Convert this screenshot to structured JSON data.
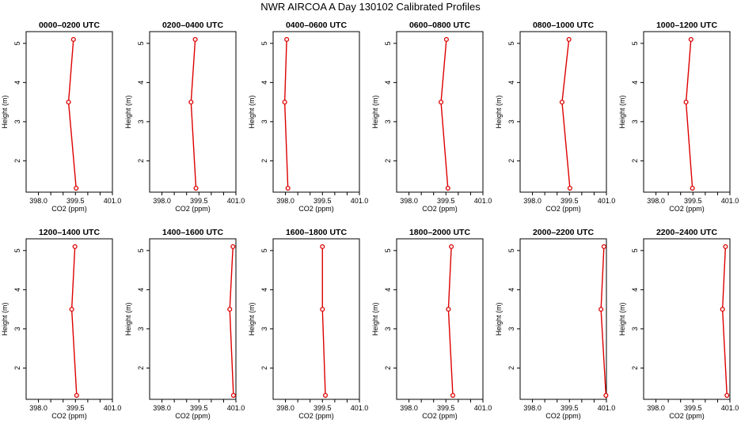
{
  "title": "NWR AIRCOA A  Day 130102  Calibrated Profiles",
  "chart_data": [
    {
      "type": "line",
      "title": "0000–0200 UTC",
      "xlabel": "CO2 (ppm)",
      "ylabel": "Height (m)",
      "xlim": [
        397.5,
        401.0
      ],
      "ylim": [
        1.2,
        5.3
      ],
      "xticks": [
        398.0,
        398.5,
        399.0,
        399.5,
        400.0,
        400.5,
        401.0
      ],
      "xtick_labels": [
        "398.0",
        "",
        "",
        "399.5",
        "",
        "",
        "401.0"
      ],
      "yticks": [
        2,
        3,
        4,
        5
      ],
      "ytick_labels": [
        "2",
        "3",
        "4",
        "5"
      ],
      "series": [
        {
          "color": "#dd0000",
          "points": [
            {
              "x": 399.42,
              "y": 5.1
            },
            {
              "x": 399.22,
              "y": 3.5
            },
            {
              "x": 399.53,
              "y": 1.3
            }
          ]
        }
      ]
    },
    {
      "type": "line",
      "title": "0200–0400 UTC",
      "xlabel": "CO2 (ppm)",
      "ylabel": "Height (m)",
      "xlim": [
        397.5,
        401.0
      ],
      "ylim": [
        1.2,
        5.3
      ],
      "xticks": [
        398.0,
        398.5,
        399.0,
        399.5,
        400.0,
        400.5,
        401.0
      ],
      "xtick_labels": [
        "398.0",
        "",
        "",
        "399.5",
        "",
        "",
        "401.0"
      ],
      "yticks": [
        2,
        3,
        4,
        5
      ],
      "ytick_labels": [
        "2",
        "3",
        "4",
        "5"
      ],
      "series": [
        {
          "color": "#dd0000",
          "points": [
            {
              "x": 399.35,
              "y": 5.1
            },
            {
              "x": 399.18,
              "y": 3.5
            },
            {
              "x": 399.38,
              "y": 1.3
            }
          ]
        }
      ]
    },
    {
      "type": "line",
      "title": "0400–0600 UTC",
      "xlabel": "CO2 (ppm)",
      "ylabel": "Height (m)",
      "xlim": [
        397.5,
        401.0
      ],
      "ylim": [
        1.2,
        5.3
      ],
      "xticks": [
        398.0,
        398.5,
        399.0,
        399.5,
        400.0,
        400.5,
        401.0
      ],
      "xtick_labels": [
        "398.0",
        "",
        "",
        "399.5",
        "",
        "",
        "401.0"
      ],
      "yticks": [
        2,
        3,
        4,
        5
      ],
      "ytick_labels": [
        "2",
        "3",
        "4",
        "5"
      ],
      "series": [
        {
          "color": "#dd0000",
          "points": [
            {
              "x": 398.05,
              "y": 5.1
            },
            {
              "x": 397.97,
              "y": 3.5
            },
            {
              "x": 398.1,
              "y": 1.3
            }
          ]
        }
      ]
    },
    {
      "type": "line",
      "title": "0600–0800 UTC",
      "xlabel": "CO2 (ppm)",
      "ylabel": "Height (m)",
      "xlim": [
        397.5,
        401.0
      ],
      "ylim": [
        1.2,
        5.3
      ],
      "xticks": [
        398.0,
        398.5,
        399.0,
        399.5,
        400.0,
        400.5,
        401.0
      ],
      "xtick_labels": [
        "398.0",
        "",
        "",
        "399.5",
        "",
        "",
        "401.0"
      ],
      "yticks": [
        2,
        3,
        4,
        5
      ],
      "ytick_labels": [
        "2",
        "3",
        "4",
        "5"
      ],
      "series": [
        {
          "color": "#dd0000",
          "points": [
            {
              "x": 399.52,
              "y": 5.1
            },
            {
              "x": 399.3,
              "y": 3.5
            },
            {
              "x": 399.58,
              "y": 1.3
            }
          ]
        }
      ]
    },
    {
      "type": "line",
      "title": "0800–1000 UTC",
      "xlabel": "CO2 (ppm)",
      "ylabel": "Height (m)",
      "xlim": [
        397.5,
        401.0
      ],
      "ylim": [
        1.2,
        5.3
      ],
      "xticks": [
        398.0,
        398.5,
        399.0,
        399.5,
        400.0,
        400.5,
        401.0
      ],
      "xtick_labels": [
        "398.0",
        "",
        "",
        "399.5",
        "",
        "",
        "401.0"
      ],
      "yticks": [
        2,
        3,
        4,
        5
      ],
      "ytick_labels": [
        "2",
        "3",
        "4",
        "5"
      ],
      "series": [
        {
          "color": "#dd0000",
          "points": [
            {
              "x": 399.48,
              "y": 5.1
            },
            {
              "x": 399.2,
              "y": 3.5
            },
            {
              "x": 399.52,
              "y": 1.3
            }
          ]
        }
      ]
    },
    {
      "type": "line",
      "title": "1000–1200 UTC",
      "xlabel": "CO2 (ppm)",
      "ylabel": "Height (m)",
      "xlim": [
        397.5,
        401.0
      ],
      "ylim": [
        1.2,
        5.3
      ],
      "xticks": [
        398.0,
        398.5,
        399.0,
        399.5,
        400.0,
        400.5,
        401.0
      ],
      "xtick_labels": [
        "398.0",
        "",
        "",
        "399.5",
        "",
        "",
        "401.0"
      ],
      "yticks": [
        2,
        3,
        4,
        5
      ],
      "ytick_labels": [
        "2",
        "3",
        "4",
        "5"
      ],
      "series": [
        {
          "color": "#dd0000",
          "points": [
            {
              "x": 399.42,
              "y": 5.1
            },
            {
              "x": 399.22,
              "y": 3.5
            },
            {
              "x": 399.48,
              "y": 1.3
            }
          ]
        }
      ]
    },
    {
      "type": "line",
      "title": "1200–1400 UTC",
      "xlabel": "CO2 (ppm)",
      "ylabel": "Height (m)",
      "xlim": [
        397.5,
        401.0
      ],
      "ylim": [
        1.2,
        5.3
      ],
      "xticks": [
        398.0,
        398.5,
        399.0,
        399.5,
        400.0,
        400.5,
        401.0
      ],
      "xtick_labels": [
        "398.0",
        "",
        "",
        "399.5",
        "",
        "",
        "401.0"
      ],
      "yticks": [
        2,
        3,
        4,
        5
      ],
      "ytick_labels": [
        "2",
        "3",
        "4",
        "5"
      ],
      "series": [
        {
          "color": "#dd0000",
          "points": [
            {
              "x": 399.48,
              "y": 5.1
            },
            {
              "x": 399.35,
              "y": 3.5
            },
            {
              "x": 399.55,
              "y": 1.3
            }
          ]
        }
      ]
    },
    {
      "type": "line",
      "title": "1400–1600 UTC",
      "xlabel": "CO2 (ppm)",
      "ylabel": "Height (m)",
      "xlim": [
        397.5,
        401.0
      ],
      "ylim": [
        1.2,
        5.3
      ],
      "xticks": [
        398.0,
        398.5,
        399.0,
        399.5,
        400.0,
        400.5,
        401.0
      ],
      "xtick_labels": [
        "398.0",
        "",
        "",
        "399.5",
        "",
        "",
        "401.0"
      ],
      "yticks": [
        2,
        3,
        4,
        5
      ],
      "ytick_labels": [
        "2",
        "3",
        "4",
        "5"
      ],
      "series": [
        {
          "color": "#dd0000",
          "points": [
            {
              "x": 400.88,
              "y": 5.1
            },
            {
              "x": 400.75,
              "y": 3.5
            },
            {
              "x": 400.9,
              "y": 1.3
            }
          ]
        }
      ]
    },
    {
      "type": "line",
      "title": "1600–1800 UTC",
      "xlabel": "CO2 (ppm)",
      "ylabel": "Height (m)",
      "xlim": [
        397.5,
        401.0
      ],
      "ylim": [
        1.2,
        5.3
      ],
      "xticks": [
        398.0,
        398.5,
        399.0,
        399.5,
        400.0,
        400.5,
        401.0
      ],
      "xtick_labels": [
        "398.0",
        "",
        "",
        "399.5",
        "",
        "",
        "401.0"
      ],
      "yticks": [
        2,
        3,
        4,
        5
      ],
      "ytick_labels": [
        "2",
        "3",
        "4",
        "5"
      ],
      "series": [
        {
          "color": "#dd0000",
          "points": [
            {
              "x": 399.5,
              "y": 5.1
            },
            {
              "x": 399.5,
              "y": 3.5
            },
            {
              "x": 399.62,
              "y": 1.3
            }
          ]
        }
      ]
    },
    {
      "type": "line",
      "title": "1800–2000 UTC",
      "xlabel": "CO2 (ppm)",
      "ylabel": "Height (m)",
      "xlim": [
        397.5,
        401.0
      ],
      "ylim": [
        1.2,
        5.3
      ],
      "xticks": [
        398.0,
        398.5,
        399.0,
        399.5,
        400.0,
        400.5,
        401.0
      ],
      "xtick_labels": [
        "398.0",
        "",
        "",
        "399.5",
        "",
        "",
        "401.0"
      ],
      "yticks": [
        2,
        3,
        4,
        5
      ],
      "ytick_labels": [
        "2",
        "3",
        "4",
        "5"
      ],
      "series": [
        {
          "color": "#dd0000",
          "points": [
            {
              "x": 399.72,
              "y": 5.1
            },
            {
              "x": 399.6,
              "y": 3.5
            },
            {
              "x": 399.78,
              "y": 1.3
            }
          ]
        }
      ]
    },
    {
      "type": "line",
      "title": "2000–2200 UTC",
      "xlabel": "CO2 (ppm)",
      "ylabel": "Height (m)",
      "xlim": [
        397.5,
        401.0
      ],
      "ylim": [
        1.2,
        5.3
      ],
      "xticks": [
        398.0,
        398.5,
        399.0,
        399.5,
        400.0,
        400.5,
        401.0
      ],
      "xtick_labels": [
        "398.0",
        "",
        "",
        "399.5",
        "",
        "",
        "401.0"
      ],
      "yticks": [
        2,
        3,
        4,
        5
      ],
      "ytick_labels": [
        "2",
        "3",
        "4",
        "5"
      ],
      "series": [
        {
          "color": "#dd0000",
          "points": [
            {
              "x": 400.9,
              "y": 5.1
            },
            {
              "x": 400.78,
              "y": 3.5
            },
            {
              "x": 400.98,
              "y": 1.3
            }
          ]
        }
      ]
    },
    {
      "type": "line",
      "title": "2200–2400 UTC",
      "xlabel": "CO2 (ppm)",
      "ylabel": "Height (m)",
      "xlim": [
        397.5,
        401.0
      ],
      "ylim": [
        1.2,
        5.3
      ],
      "xticks": [
        398.0,
        398.5,
        399.0,
        399.5,
        400.0,
        400.5,
        401.0
      ],
      "xtick_labels": [
        "398.0",
        "",
        "",
        "399.5",
        "",
        "",
        "401.0"
      ],
      "yticks": [
        2,
        3,
        4,
        5
      ],
      "ytick_labels": [
        "2",
        "3",
        "4",
        "5"
      ],
      "series": [
        {
          "color": "#dd0000",
          "points": [
            {
              "x": 400.82,
              "y": 5.1
            },
            {
              "x": 400.7,
              "y": 3.5
            },
            {
              "x": 400.88,
              "y": 1.3
            }
          ]
        }
      ]
    }
  ]
}
